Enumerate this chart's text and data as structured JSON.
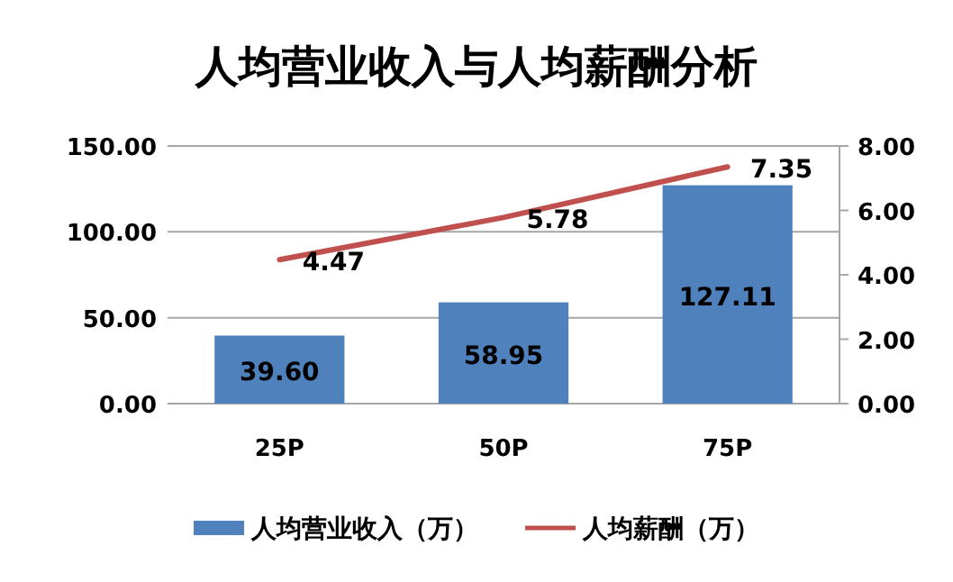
{
  "chart_data": {
    "type": "bar",
    "title": "人均营业收入与人均薪酬分析",
    "categories": [
      "25P",
      "50P",
      "75P"
    ],
    "series": [
      {
        "name": "人均营业收入（万）",
        "color": "#4f81bd",
        "values": [
          39.6,
          58.95,
          127.11
        ],
        "value_labels": [
          "39.60",
          "58.95",
          "127.11"
        ]
      },
      {
        "name": "人均薪酬（万）",
        "type": "line",
        "axis": "y2",
        "color": "#c0504d",
        "values": [
          4.47,
          5.78,
          7.35
        ],
        "value_labels": [
          "4.47",
          "5.78",
          "7.35"
        ]
      }
    ],
    "ylim": [
      0,
      150
    ],
    "yticks": [
      {
        "value": 0,
        "label": "0.00"
      },
      {
        "value": 50,
        "label": "50.00"
      },
      {
        "value": 100,
        "label": "100.00"
      },
      {
        "value": 150,
        "label": "150.00"
      }
    ],
    "y2lim": [
      0,
      8
    ],
    "y2ticks": [
      {
        "value": 0,
        "label": "0.00"
      },
      {
        "value": 2,
        "label": "2.00"
      },
      {
        "value": 4,
        "label": "4.00"
      },
      {
        "value": 6,
        "label": "6.00"
      },
      {
        "value": 8,
        "label": "8.00"
      }
    ],
    "grid": "y",
    "legend": "bottom"
  }
}
